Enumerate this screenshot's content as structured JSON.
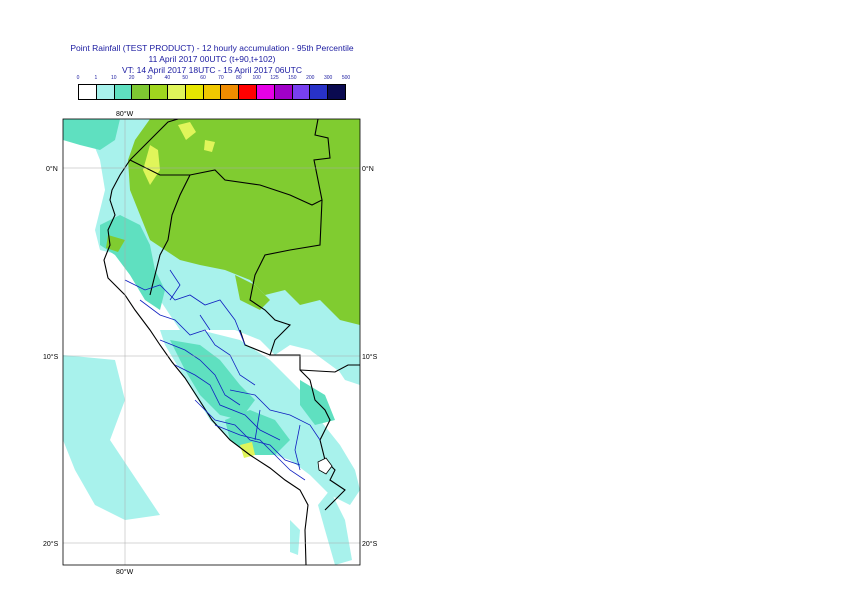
{
  "title": {
    "line1": "Point Rainfall (TEST PRODUCT) - 12 hourly accumulation - 95th Percentile",
    "line2": "11 April 2017 00UTC (t+90,t+102)",
    "line3": "VT: 14 April 2017 18UTC - 15 April 2017 06UTC"
  },
  "legend": {
    "ticks": [
      "0",
      "1",
      "10",
      "20",
      "30",
      "40",
      "50",
      "60",
      "70",
      "80",
      "100",
      "125",
      "150",
      "200",
      "300",
      "500"
    ],
    "colors": [
      "#ffffff",
      "#a8f2ec",
      "#5fe0c0",
      "#7ec832",
      "#a0d61e",
      "#e0f55a",
      "#e6e600",
      "#f0c800",
      "#f08c00",
      "#ff0000",
      "#e600e6",
      "#a000c8",
      "#7840f0",
      "#2832c8",
      "#0a0a50"
    ]
  },
  "map": {
    "lat_labels": {
      "n0": "0°N",
      "s10": "10°S",
      "s20": "20°S"
    },
    "lon_labels": {
      "top": "80°W",
      "bottom": "80°W"
    },
    "colors": {
      "land": "#80cc30",
      "light": "#a8f2ec",
      "medium": "#5fe0c0",
      "yellow": "#e0f55a",
      "border": "#000000",
      "province": "#1020c0"
    }
  }
}
